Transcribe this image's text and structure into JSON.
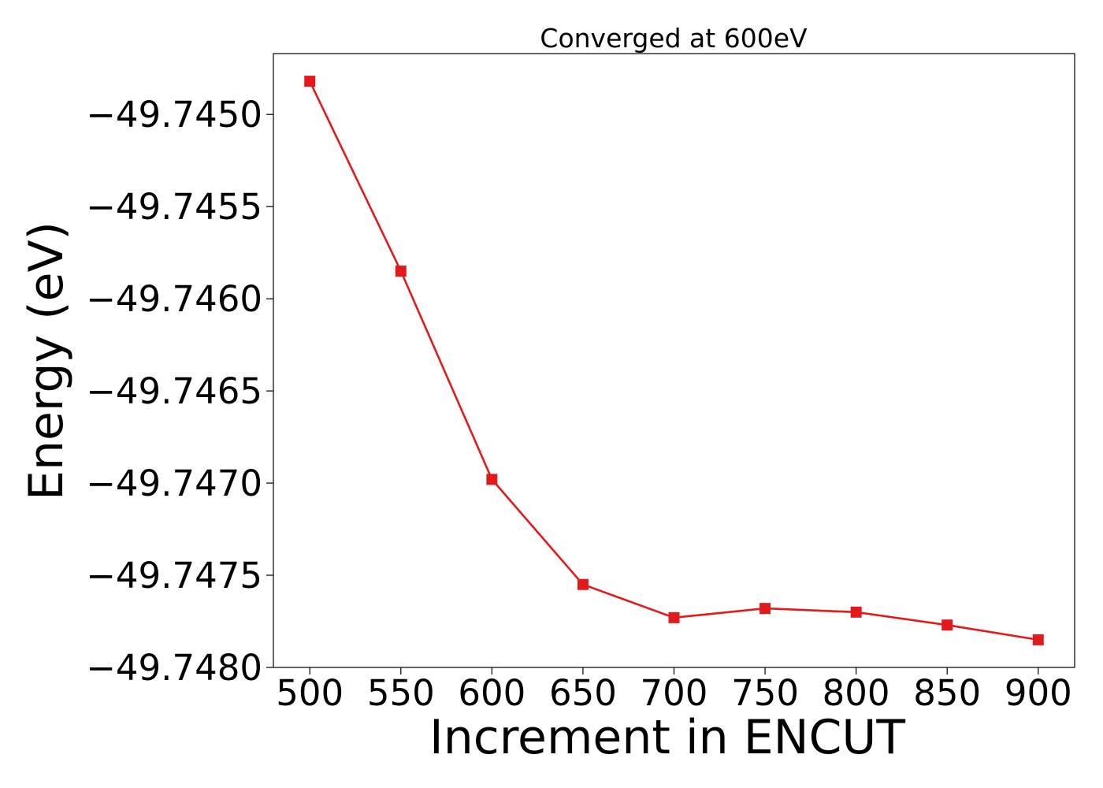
{
  "chart_data": {
    "type": "line",
    "title": "Converged at 600eV",
    "xlabel": "Increment in ENCUT",
    "ylabel": "Energy (eV)",
    "x": [
      500,
      550,
      600,
      650,
      700,
      750,
      800,
      850,
      900
    ],
    "series": [
      {
        "values": [
          -49.74482,
          -49.74585,
          -49.74698,
          -49.74755,
          -49.74773,
          -49.74768,
          -49.7477,
          -49.74777,
          -49.74785
        ],
        "color": "#e31a1c",
        "marker": "square"
      }
    ],
    "xlim": [
      480,
      920
    ],
    "ylim": [
      -49.748,
      -49.74467
    ],
    "x_ticks": [
      "500",
      "550",
      "600",
      "650",
      "700",
      "750",
      "800",
      "850",
      "900"
    ],
    "y_ticks": [
      "−49.7450",
      "−49.7455",
      "−49.7460",
      "−49.7465",
      "−49.7470",
      "−49.7475",
      "−49.7480"
    ],
    "y_tick_values": [
      -49.745,
      -49.7455,
      -49.746,
      -49.7465,
      -49.747,
      -49.7475,
      -49.748
    ],
    "grid": false,
    "legend": "none"
  }
}
